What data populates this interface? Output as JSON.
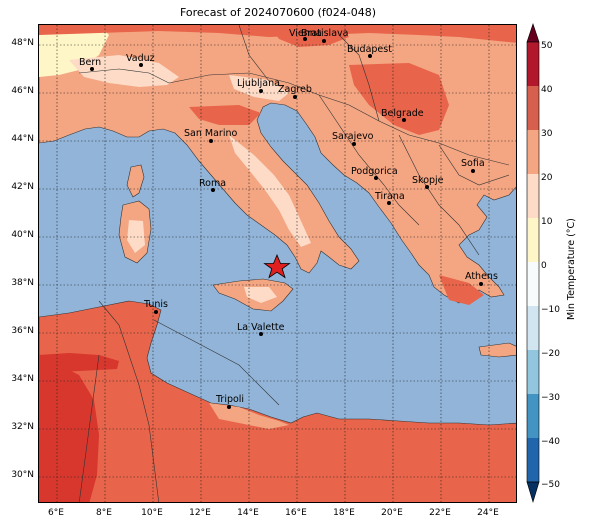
{
  "title": "Forecast of 2024070600 (f024-048)",
  "lat_ticks": [
    "48°N",
    "46°N",
    "44°N",
    "42°N",
    "40°N",
    "38°N",
    "36°N",
    "34°N",
    "32°N",
    "30°N"
  ],
  "lon_ticks": [
    "6°E",
    "8°E",
    "10°E",
    "12°E",
    "14°E",
    "16°E",
    "18°E",
    "20°E",
    "22°E",
    "24°E"
  ],
  "cities": [
    {
      "name": "Bern"
    },
    {
      "name": "Vaduz"
    },
    {
      "name": "Vienna"
    },
    {
      "name": "Bratislava"
    },
    {
      "name": "Budapest"
    },
    {
      "name": "Ljubljana"
    },
    {
      "name": "Zagreb"
    },
    {
      "name": "Belgrade"
    },
    {
      "name": "San Marino"
    },
    {
      "name": "Sarajevo"
    },
    {
      "name": "Sofia"
    },
    {
      "name": "Podgorica"
    },
    {
      "name": "Skopje"
    },
    {
      "name": "Roma"
    },
    {
      "name": "Tirana"
    },
    {
      "name": "Athens"
    },
    {
      "name": "Tunis"
    },
    {
      "name": "La Valette"
    },
    {
      "name": "Tripoli"
    }
  ],
  "colorbar": {
    "label": "Min Temperature (°C)",
    "ticks": [
      "50",
      "40",
      "30",
      "20",
      "10",
      "0",
      "−10",
      "−20",
      "−30",
      "−40",
      "−50"
    ],
    "colors": [
      "#67001f",
      "#b2182b",
      "#d6604d",
      "#f4a582",
      "#fddbc7",
      "#f7f7f7",
      "#d1e5f0",
      "#92c5de",
      "#4393c3",
      "#2166ac",
      "#053061"
    ]
  },
  "colors": {
    "sea": "#91b4d8",
    "temp_20_30": "#f4a582",
    "temp_30_40": "#e8644a",
    "temp_30_40_dark": "#d7372c",
    "temp_10_20": "#fddbc7",
    "temp_0_10": "#fef6c7"
  }
}
